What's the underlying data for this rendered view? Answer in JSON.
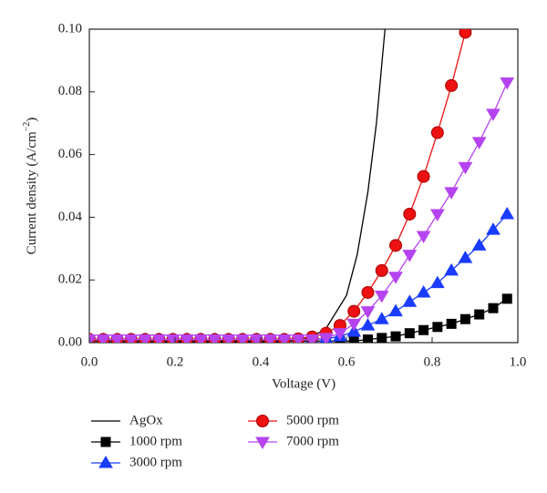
{
  "chart_data": {
    "type": "line",
    "x_label": "Voltage (V)",
    "y_label": "Current density (A/cm",
    "y_label_sup": "−2",
    "y_label_end": ")",
    "x": [
      0,
      0.0325,
      0.065,
      0.0975,
      0.13,
      0.1625,
      0.195,
      0.2275,
      0.26,
      0.2925,
      0.325,
      0.3575,
      0.39,
      0.4225,
      0.455,
      0.4875,
      0.52,
      0.5525,
      0.585,
      0.6175,
      0.65,
      0.6825,
      0.715,
      0.7475,
      0.78,
      0.8125,
      0.845,
      0.8775,
      0.91,
      0.9425,
      0.975
    ],
    "series": [
      {
        "name": "AgOx",
        "color": "#000000",
        "marker": "none",
        "x": [
          0,
          0.45,
          0.5,
          0.55,
          0.6,
          0.625,
          0.65,
          0.67,
          0.69
        ],
        "values": [
          0,
          0.0003,
          0.001,
          0.004,
          0.015,
          0.028,
          0.048,
          0.07,
          0.1
        ]
      },
      {
        "name": "1000 rpm",
        "color": "#000000",
        "marker": "square",
        "values": [
          0.0005,
          0.0005,
          0.0005,
          0.0005,
          0.0005,
          0.0005,
          0.0005,
          0.0005,
          0.0005,
          0.0005,
          0.0005,
          0.0005,
          0.0005,
          0.0005,
          0.0005,
          0.0005,
          0.0005,
          0.0005,
          0.0005,
          0.0005,
          0.001,
          0.0015,
          0.002,
          0.003,
          0.004,
          0.005,
          0.006,
          0.0075,
          0.009,
          0.011,
          0.014
        ]
      },
      {
        "name": "3000 rpm",
        "color": "#1a3cff",
        "marker": "triangle-up",
        "values": [
          0.001,
          0.001,
          0.001,
          0.001,
          0.001,
          0.001,
          0.001,
          0.001,
          0.001,
          0.001,
          0.001,
          0.001,
          0.001,
          0.001,
          0.001,
          0.001,
          0.001,
          0.0012,
          0.002,
          0.0035,
          0.0055,
          0.0075,
          0.01,
          0.013,
          0.016,
          0.019,
          0.023,
          0.027,
          0.031,
          0.036,
          0.041
        ]
      },
      {
        "name": "5000 rpm",
        "color": "#ee1111",
        "marker": "circle",
        "values": [
          0.001,
          0.001,
          0.001,
          0.001,
          0.001,
          0.001,
          0.001,
          0.001,
          0.001,
          0.001,
          0.001,
          0.001,
          0.001,
          0.001,
          0.001,
          0.0012,
          0.0018,
          0.003,
          0.0055,
          0.01,
          0.016,
          0.023,
          0.031,
          0.041,
          0.053,
          0.067,
          0.082,
          0.099,
          null,
          null,
          null
        ]
      },
      {
        "name": "7000 rpm",
        "color": "#b544f0",
        "marker": "triangle-down",
        "values": [
          0.001,
          0.001,
          0.001,
          0.001,
          0.001,
          0.001,
          0.001,
          0.001,
          0.001,
          0.001,
          0.001,
          0.001,
          0.001,
          0.001,
          0.001,
          0.001,
          0.001,
          0.0015,
          0.003,
          0.006,
          0.01,
          0.015,
          0.021,
          0.028,
          0.034,
          0.041,
          0.048,
          0.056,
          0.064,
          0.073,
          0.083
        ]
      }
    ],
    "xlim": [
      0,
      1
    ],
    "ylim": [
      0,
      0.1
    ],
    "xticks": [
      {
        "value": 0,
        "label": "0.0"
      },
      {
        "value": 0.2,
        "label": "0.2"
      },
      {
        "value": 0.4,
        "label": "0.4"
      },
      {
        "value": 0.6,
        "label": "0.6"
      },
      {
        "value": 0.8,
        "label": "0.8"
      },
      {
        "value": 1,
        "label": "1.0"
      }
    ],
    "yticks": [
      {
        "value": 0,
        "label": "0.00"
      },
      {
        "value": 0.02,
        "label": "0.02"
      },
      {
        "value": 0.04,
        "label": "0.04"
      },
      {
        "value": 0.06,
        "label": "0.06"
      },
      {
        "value": 0.08,
        "label": "0.08"
      },
      {
        "value": 0.1,
        "label": "0.10"
      }
    ],
    "grid": false
  }
}
